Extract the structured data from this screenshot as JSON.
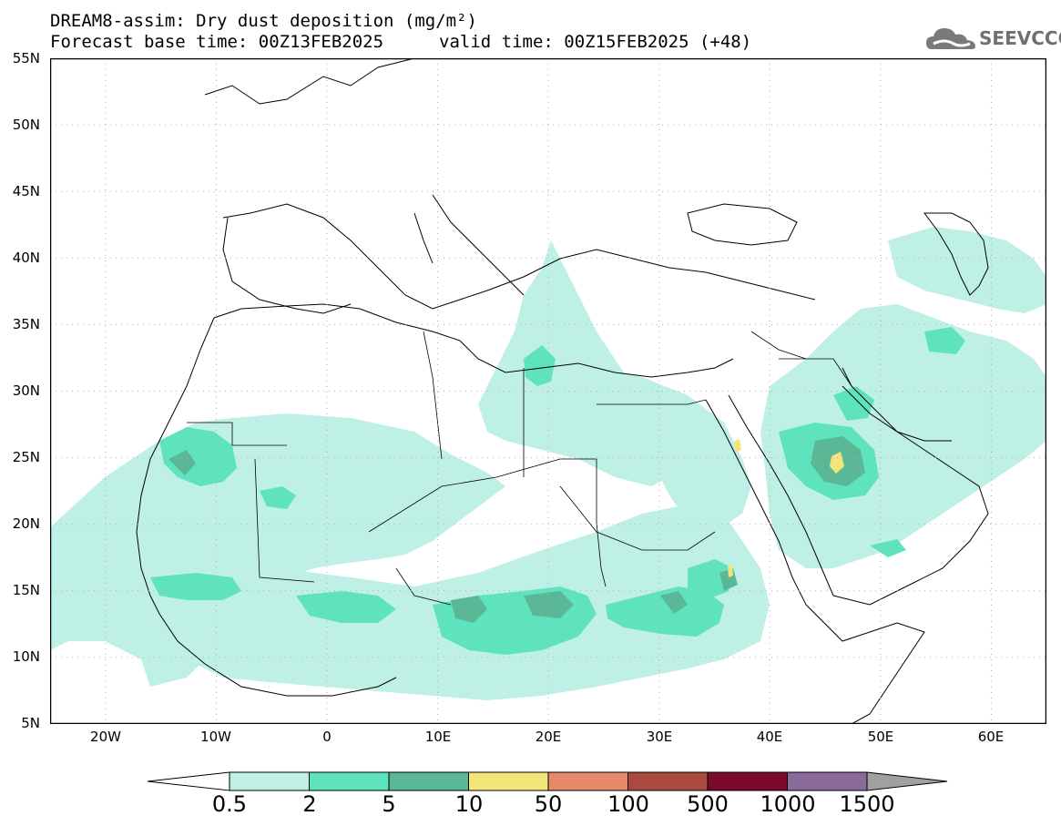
{
  "title": {
    "line1": "DREAM8-assim: Dry dust deposition (mg/m²)",
    "line2_base": "Forecast base time: 00Z13FEB2025",
    "line2_valid": "valid time: 00Z15FEB2025 (+48)"
  },
  "logo": {
    "text": "SEEVCCC",
    "icon": "cloud-icon"
  },
  "map": {
    "projection": "lat-lon",
    "lon_range": [
      -25,
      65
    ],
    "lat_range": [
      5,
      55
    ],
    "gridlines": "dotted",
    "lat_labels": [
      "55N",
      "50N",
      "45N",
      "40N",
      "35N",
      "30N",
      "25N",
      "20N",
      "15N",
      "10N",
      "5N"
    ],
    "lon_labels": [
      "20W",
      "10W",
      "0",
      "10E",
      "20E",
      "30E",
      "40E",
      "50E",
      "60E"
    ]
  },
  "colorbar": {
    "labels": [
      "0.5",
      "2",
      "5",
      "10",
      "50",
      "100",
      "500",
      "1000",
      "1500"
    ],
    "colors": [
      "#ffffff",
      "#bff0e6",
      "#5ee3bd",
      "#5bb896",
      "#f2e67a",
      "#e88a6a",
      "#a84a3e",
      "#7a0a2a",
      "#8a6a9a",
      "#a0a0a0"
    ]
  }
}
